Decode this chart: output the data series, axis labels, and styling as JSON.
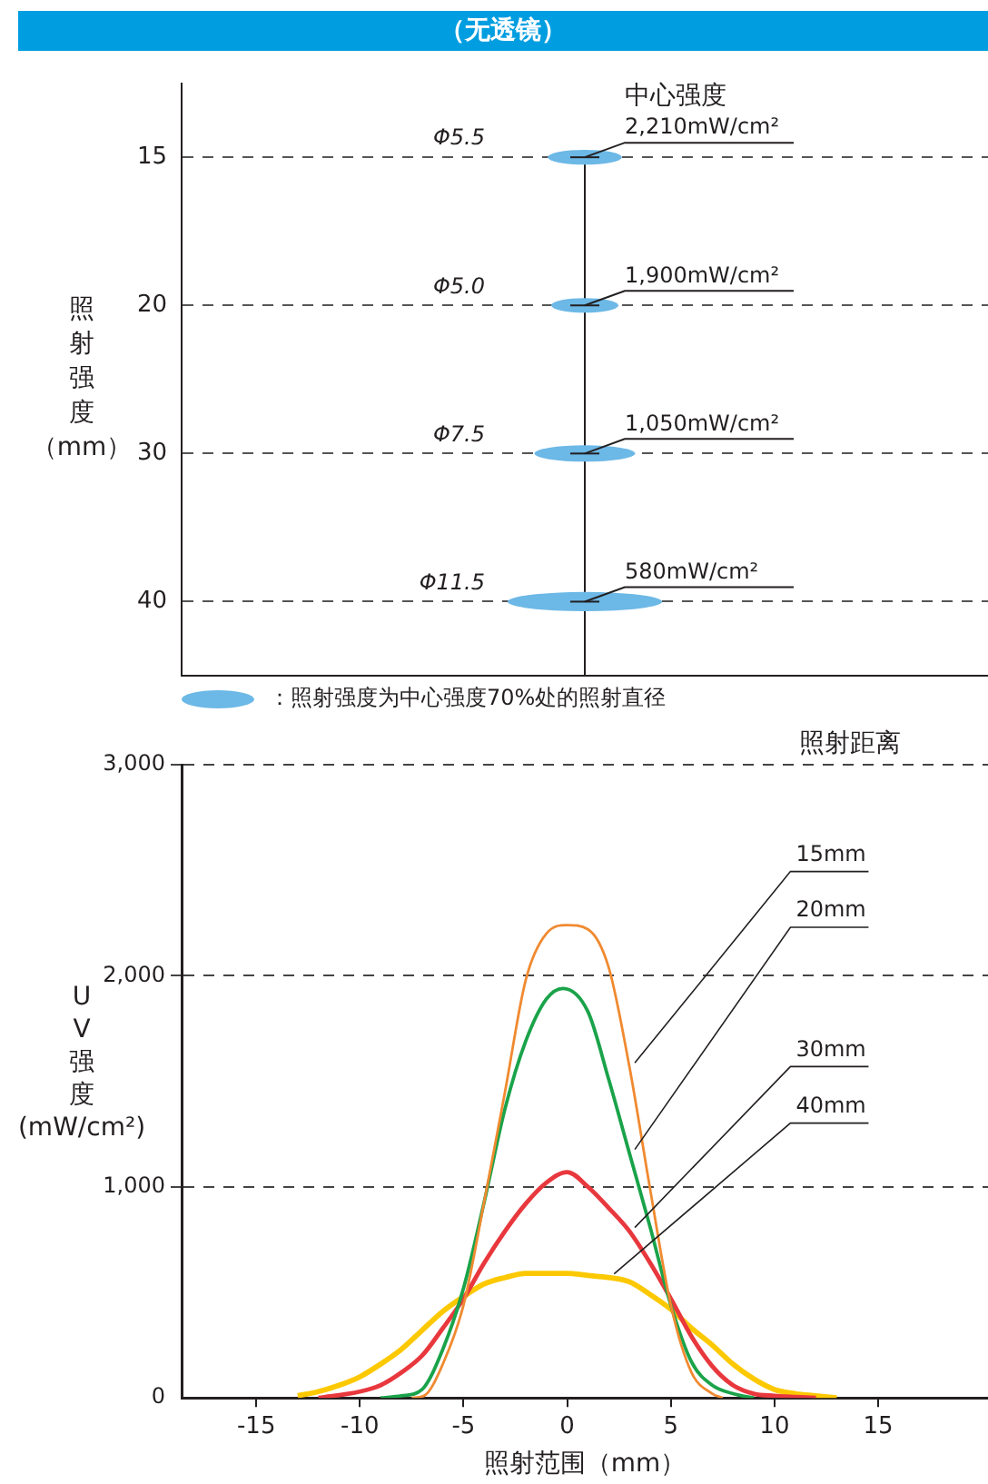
{
  "chart_data": [
    {
      "type": "other",
      "title": "（无透镜）",
      "ylabel": "照射强度（mm）",
      "categories": [
        "15",
        "20",
        "30",
        "40"
      ],
      "series": [
        {
          "color": "#6cb8e6",
          "values": [
            5.5,
            5.0,
            7.5,
            11.5
          ],
          "value_labels": [
            "Φ5.5",
            "Φ5.0",
            "Φ7.5",
            "Φ11.5"
          ]
        },
        {
          "color": "#231f20",
          "values": [
            2210,
            1900,
            1050,
            580
          ],
          "value_labels": [
            "2,210mW/cm²",
            "1,900mW/cm²",
            "1,050mW/cm²",
            "580mW/cm²"
          ]
        }
      ],
      "annotations": [
        "中心强度",
        "：照射强度为中心强度70%处的照射直径"
      ]
    },
    {
      "type": "line",
      "xlabel": "照射范围（mm）",
      "ylabel": "UV强度(mW/cm²)",
      "legend_title": "照射距离",
      "legend": false,
      "grid": "y",
      "marker": "none",
      "line_style": "solid",
      "xlim": [
        -18.6,
        20.3
      ],
      "xticks": [
        -15,
        -10,
        -5,
        0,
        5,
        10,
        15
      ],
      "ylim": [
        0,
        3000
      ],
      "yticks": [
        0,
        {
          "value": 1000,
          "label": "1,000"
        },
        {
          "value": 2000,
          "label": "2,000"
        },
        {
          "value": 3000,
          "label": "3,000"
        }
      ],
      "series": [
        {
          "name": "15mm",
          "color": "#f08a30",
          "x": [
            -7.5,
            -6.9,
            -6,
            -5,
            -4,
            -3,
            -2,
            -1,
            0,
            1,
            2,
            3,
            4,
            5,
            6,
            7,
            7.5
          ],
          "values": [
            0,
            10,
            160,
            440,
            930,
            1450,
            1980,
            2200,
            2240,
            2220,
            2040,
            1570,
            990,
            440,
            120,
            20,
            0
          ]
        },
        {
          "name": "20mm",
          "color": "#1aa34a",
          "x": [
            -9,
            -8,
            -7,
            -6,
            -5,
            -4,
            -3,
            -2,
            -1,
            -0.2,
            1,
            2,
            3,
            4,
            5,
            6,
            7,
            8,
            9
          ],
          "values": [
            0,
            10,
            40,
            230,
            520,
            930,
            1370,
            1690,
            1890,
            1940,
            1830,
            1510,
            1160,
            810,
            440,
            170,
            60,
            20,
            0
          ]
        },
        {
          "name": "30mm",
          "color": "#e8383d",
          "x": [
            -12,
            -10,
            -9,
            -8,
            -7,
            -6,
            -5,
            -4,
            -3,
            -2,
            -1,
            0,
            1,
            2,
            3,
            4,
            5,
            6,
            7,
            8,
            9,
            10,
            12
          ],
          "values": [
            0,
            30,
            60,
            120,
            200,
            330,
            470,
            640,
            790,
            920,
            1020,
            1070,
            1000,
            900,
            790,
            640,
            470,
            290,
            150,
            60,
            20,
            10,
            0
          ]
        },
        {
          "name": "40mm",
          "color": "#fcc800",
          "x": [
            -13,
            -12,
            -11,
            -10,
            -9,
            -8,
            -7,
            -6,
            -5,
            -4,
            -3,
            -2,
            -1,
            0,
            1,
            2,
            3,
            4,
            5,
            6,
            7,
            8,
            9,
            10,
            11,
            12,
            13
          ],
          "values": [
            10,
            30,
            60,
            100,
            160,
            230,
            320,
            410,
            480,
            540,
            570,
            590,
            590,
            590,
            580,
            570,
            550,
            490,
            420,
            330,
            250,
            160,
            90,
            40,
            20,
            10,
            0
          ]
        }
      ]
    }
  ]
}
